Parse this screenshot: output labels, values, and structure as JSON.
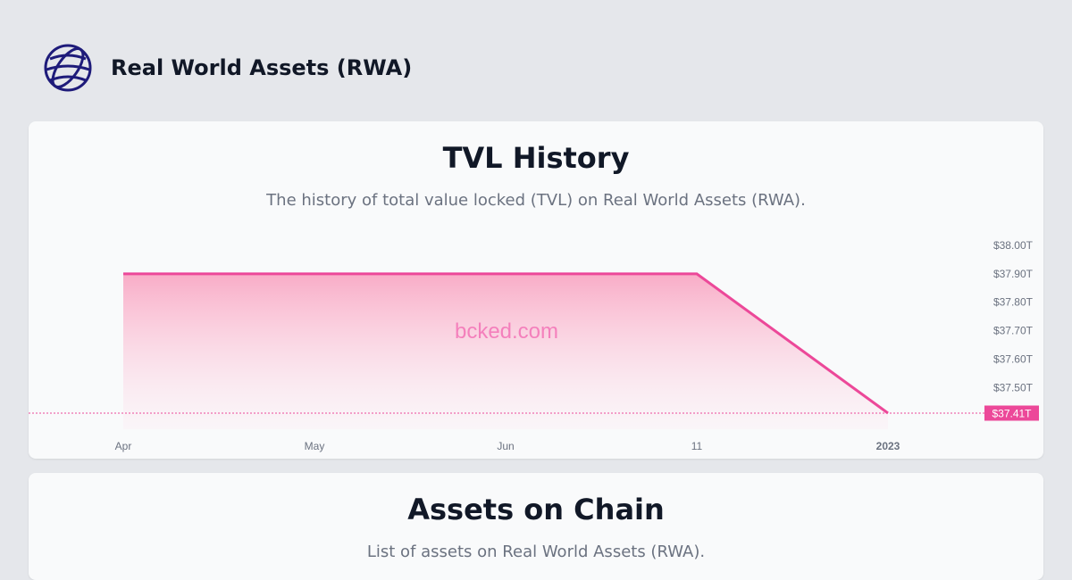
{
  "header": {
    "title": "Real World Assets (RWA)",
    "logo_icon": "globe-icon",
    "logo_color": "#1e1b7a"
  },
  "tvl_card": {
    "title": "TVL History",
    "subtitle": "The history of total value locked (TVL) on Real World Assets (RWA).",
    "watermark": "bcked.com"
  },
  "assets_card": {
    "title": "Assets on Chain",
    "subtitle": "List of assets on Real World Assets (RWA)."
  },
  "chart_data": {
    "type": "area",
    "title": "TVL History",
    "x": [
      "Apr",
      "11",
      "2023"
    ],
    "values": [
      37.9,
      37.9,
      37.41
    ],
    "x_tick_labels": [
      "Apr",
      "May",
      "Jun",
      "11",
      "2023"
    ],
    "x_tick_bold": [
      false,
      false,
      false,
      false,
      true
    ],
    "y_tick_labels": [
      "$38.00T",
      "$37.90T",
      "$37.80T",
      "$37.70T",
      "$37.60T",
      "$37.50T"
    ],
    "y_tick_values": [
      38.0,
      37.9,
      37.8,
      37.7,
      37.6,
      37.5
    ],
    "ylim": [
      37.41,
      38.0
    ],
    "last_value_label": "$37.41T",
    "line_color": "#ec4899",
    "fill_color": "#f9a8c4",
    "grid": false,
    "y_axis_position": "right"
  }
}
